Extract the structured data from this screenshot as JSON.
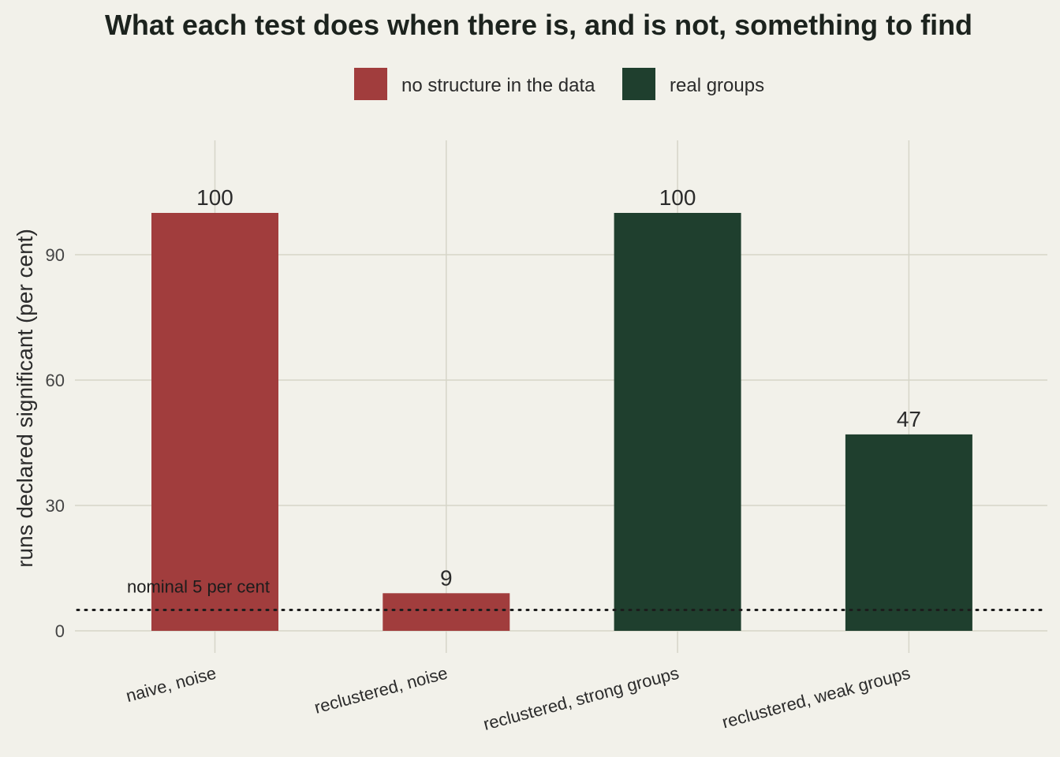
{
  "chart_data": {
    "type": "bar",
    "title": "What each test does when there is, and is not, something to find",
    "ylabel": "runs declared significant (per cent)",
    "xlabel": "",
    "categories": [
      "naive, noise",
      "reclustered, noise",
      "reclustered, strong groups",
      "reclustered, weak groups"
    ],
    "values": [
      100,
      9,
      100,
      47
    ],
    "groups": [
      "no structure in the data",
      "no structure in the data",
      "real groups",
      "real groups"
    ],
    "legend": [
      {
        "label": "no structure in the data",
        "color": "#a13d3d"
      },
      {
        "label": "real groups",
        "color": "#1f3f2e"
      }
    ],
    "legend_position": "top",
    "ylim": [
      0,
      110
    ],
    "yticks": [
      0,
      30,
      60,
      90
    ],
    "grid": true,
    "reference_line": {
      "value": 5,
      "label": "nominal 5 per cent",
      "style": "dotted"
    }
  }
}
